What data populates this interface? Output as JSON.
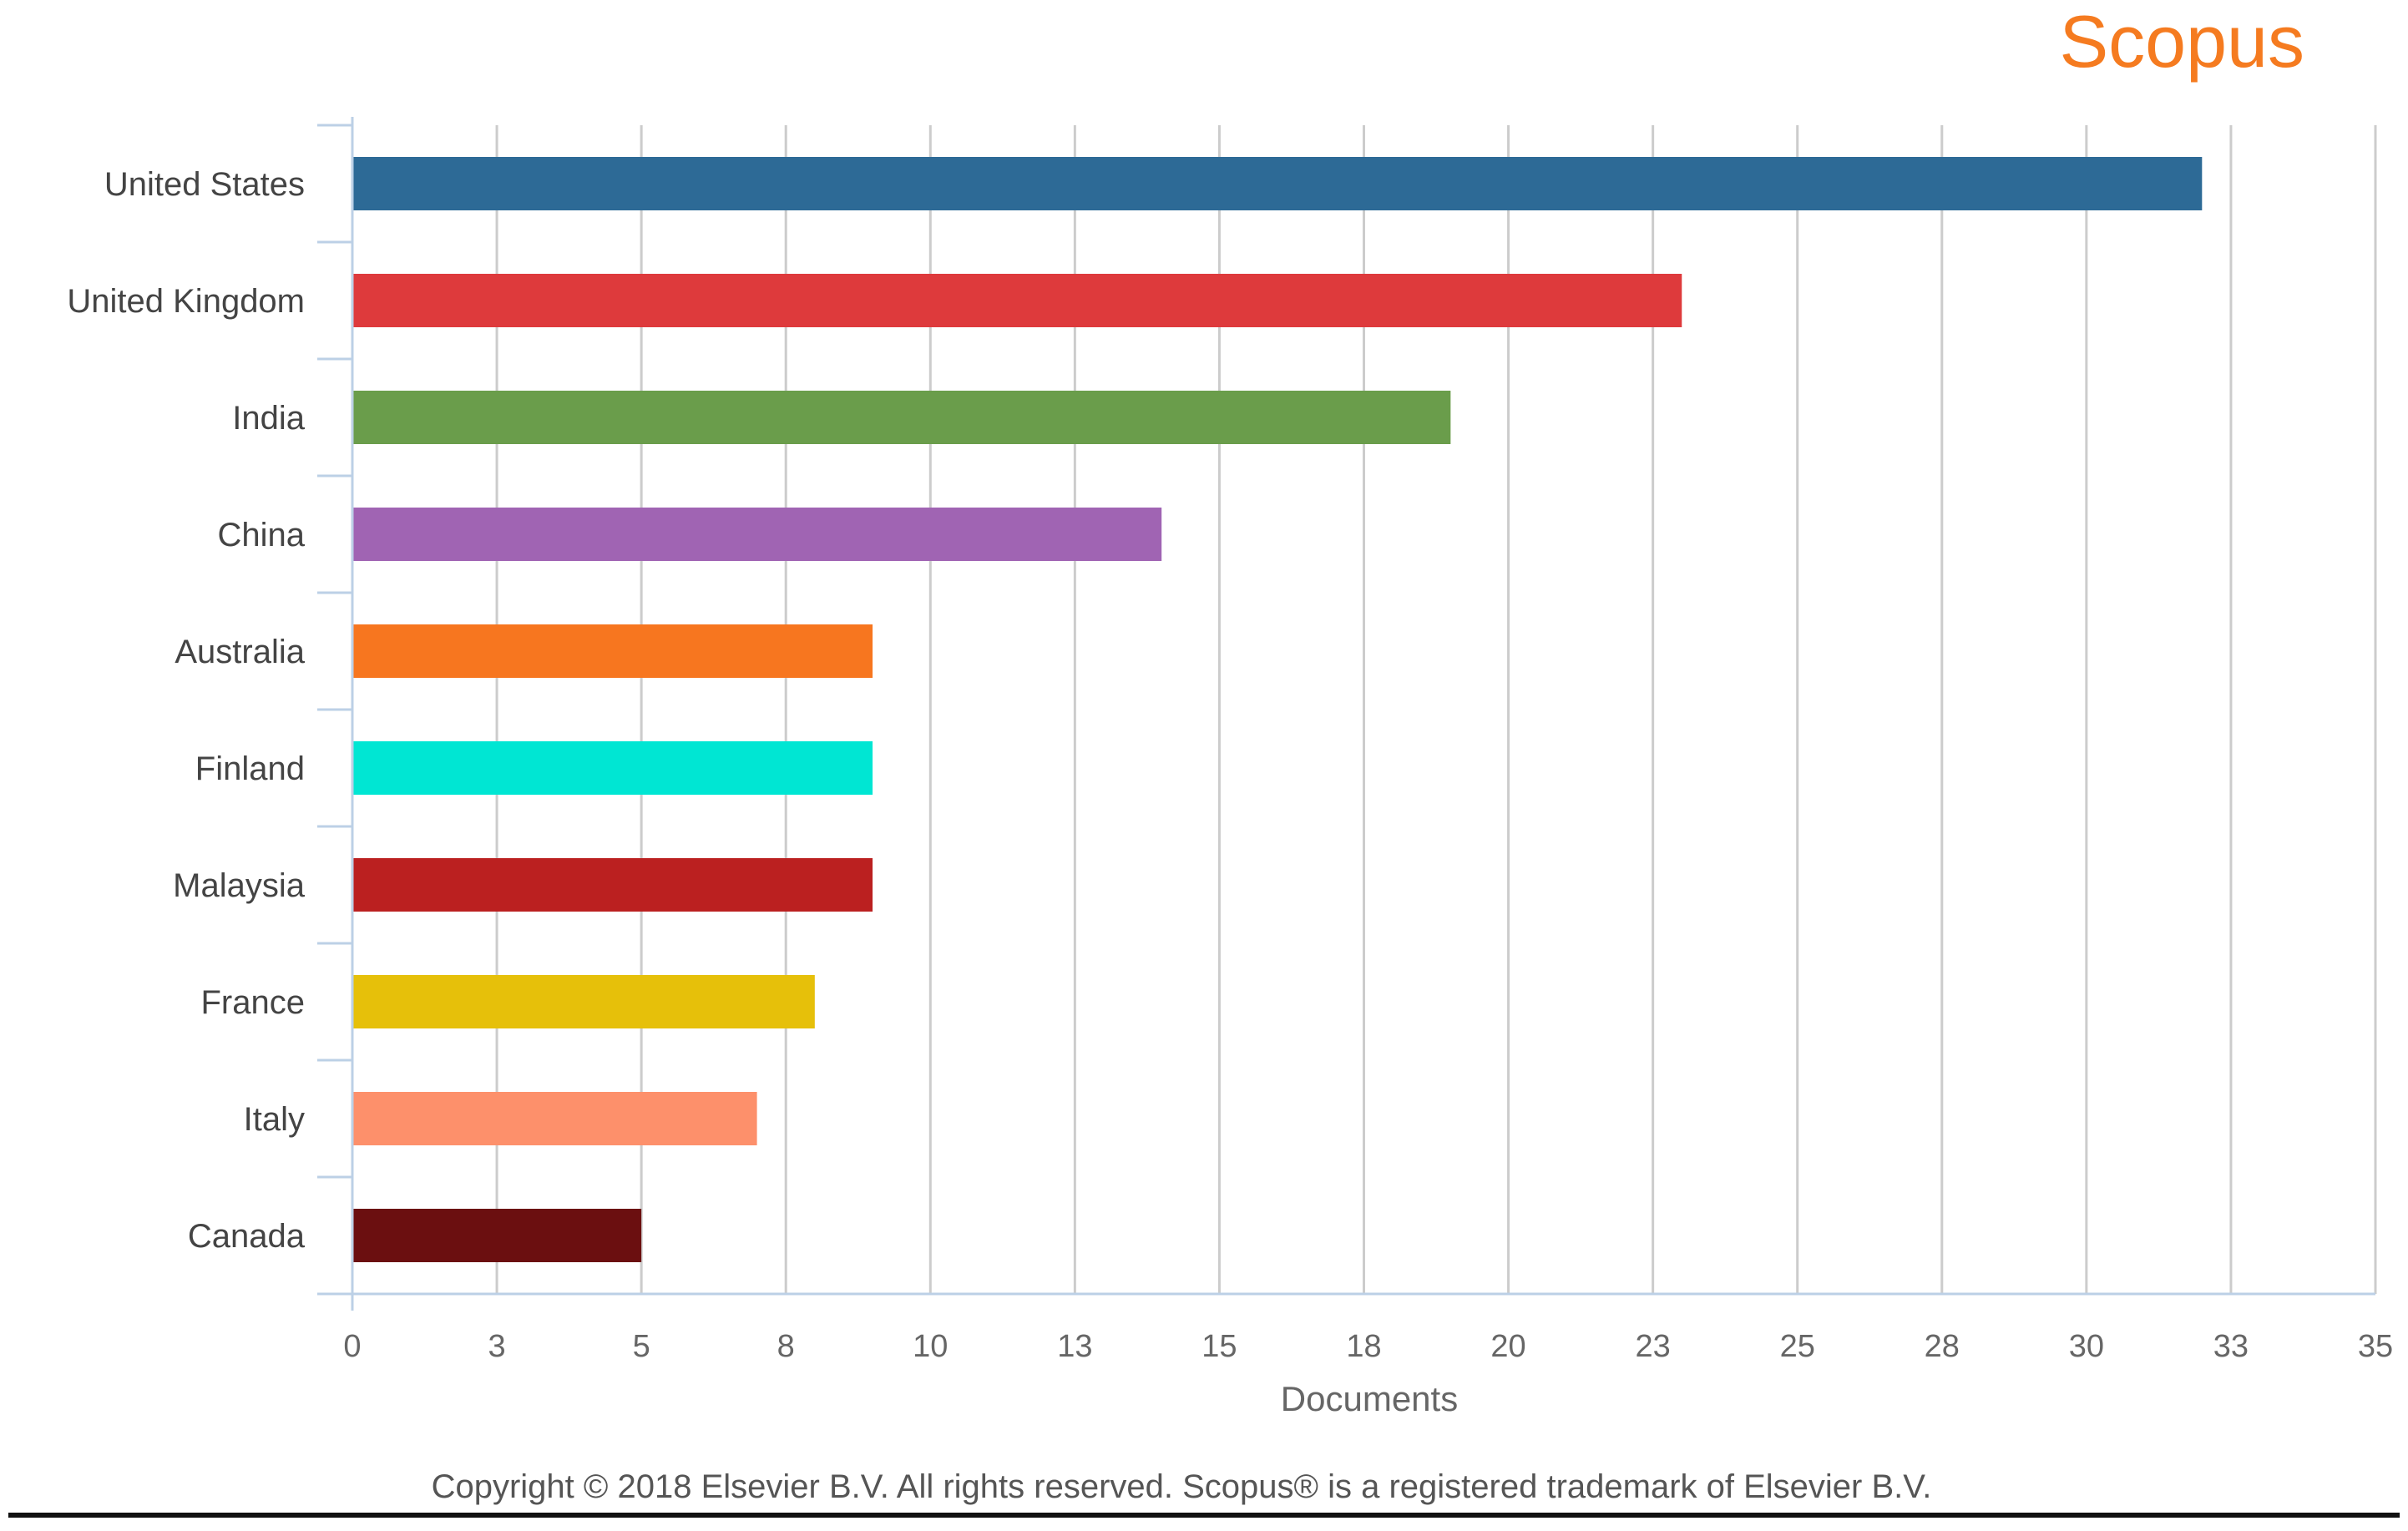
{
  "brand": {
    "name": "Scopus",
    "color": "#f57b20"
  },
  "footer": {
    "copyright": "Copyright © 2018 Elsevier B.V. All rights reserved. Scopus® is a registered trademark of Elsevier B.V."
  },
  "chart_data": {
    "type": "bar",
    "orientation": "horizontal",
    "title": "",
    "xlabel": "Documents",
    "ylabel": "",
    "xlim": [
      0,
      35
    ],
    "grid": true,
    "tick_values": [
      0,
      2.5,
      5,
      7.5,
      10,
      12.5,
      15,
      17.5,
      20,
      22.5,
      25,
      27.5,
      30,
      32.5,
      35
    ],
    "tick_labels": [
      "0",
      "3",
      "5",
      "8",
      "10",
      "13",
      "15",
      "18",
      "20",
      "23",
      "25",
      "28",
      "30",
      "33",
      "35"
    ],
    "categories": [
      "United States",
      "United Kingdom",
      "India",
      "China",
      "Australia",
      "Finland",
      "Malaysia",
      "France",
      "Italy",
      "Canada"
    ],
    "values": [
      32,
      23,
      19,
      14,
      9,
      9,
      9,
      8,
      7,
      5
    ],
    "colors": [
      "#2d6a96",
      "#de3a3c",
      "#6a9d4b",
      "#a064b3",
      "#f7761f",
      "#00e6d3",
      "#bb2020",
      "#e6c00a",
      "#fd906b",
      "#6b0f10"
    ]
  }
}
